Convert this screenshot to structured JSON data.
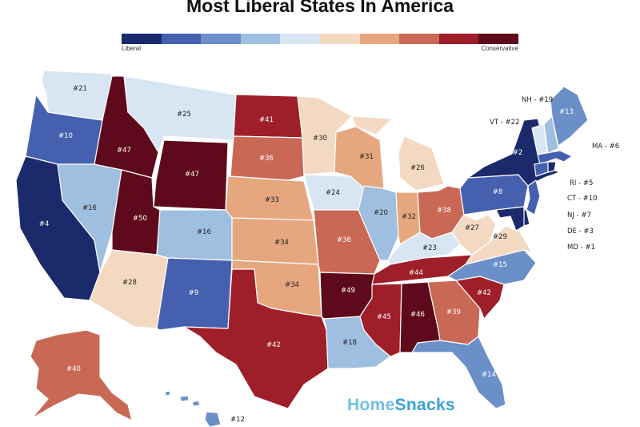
{
  "title": "Most Liberal States In America",
  "legend": {
    "left_label": "Liberal",
    "right_label": "Conservative",
    "colors": [
      "#1b2a6b",
      "#4660b0",
      "#6b8fc8",
      "#9fbfe0",
      "#d8e6f3",
      "#f4d9c2",
      "#e6a77f",
      "#c96955",
      "#9e1f2a",
      "#5e0a1c"
    ]
  },
  "states": [
    {
      "id": "WA",
      "rank": "#21"
    },
    {
      "id": "OR",
      "rank": "#10"
    },
    {
      "id": "CA",
      "rank": "#4"
    },
    {
      "id": "NV",
      "rank": "#16"
    },
    {
      "id": "ID",
      "rank": "#47"
    },
    {
      "id": "MT",
      "rank": "#25"
    },
    {
      "id": "WY",
      "rank": "#47"
    },
    {
      "id": "UT",
      "rank": "#50"
    },
    {
      "id": "AZ",
      "rank": "#28"
    },
    {
      "id": "CO",
      "rank": "#16"
    },
    {
      "id": "NM",
      "rank": "#9"
    },
    {
      "id": "ND",
      "rank": "#41"
    },
    {
      "id": "SD",
      "rank": "#36"
    },
    {
      "id": "NE",
      "rank": "#33"
    },
    {
      "id": "KS",
      "rank": "#34"
    },
    {
      "id": "OK",
      "rank": "#34"
    },
    {
      "id": "TX",
      "rank": "#42"
    },
    {
      "id": "MN",
      "rank": "#30"
    },
    {
      "id": "IA",
      "rank": "#24"
    },
    {
      "id": "MO",
      "rank": "#36"
    },
    {
      "id": "AR",
      "rank": "#49"
    },
    {
      "id": "LA",
      "rank": "#18"
    },
    {
      "id": "WI",
      "rank": "#31"
    },
    {
      "id": "IL",
      "rank": "#20"
    },
    {
      "id": "MI",
      "rank": "#26"
    },
    {
      "id": "IN",
      "rank": "#32"
    },
    {
      "id": "OH",
      "rank": "#38"
    },
    {
      "id": "KY",
      "rank": "#23"
    },
    {
      "id": "TN",
      "rank": "#44"
    },
    {
      "id": "MS",
      "rank": "#45"
    },
    {
      "id": "AL",
      "rank": "#46"
    },
    {
      "id": "GA",
      "rank": "#39"
    },
    {
      "id": "FL",
      "rank": "#14"
    },
    {
      "id": "SC",
      "rank": "#42"
    },
    {
      "id": "NC",
      "rank": "#15"
    },
    {
      "id": "VA",
      "rank": "#29"
    },
    {
      "id": "WV",
      "rank": "#27"
    },
    {
      "id": "PA",
      "rank": "#8"
    },
    {
      "id": "NY",
      "rank": "#2"
    },
    {
      "id": "ME",
      "rank": "#13"
    },
    {
      "id": "AK",
      "rank": "#40"
    },
    {
      "id": "HI",
      "rank": "#12"
    }
  ],
  "callouts": [
    {
      "id": "NH",
      "label": "NH - #19"
    },
    {
      "id": "VT",
      "label": "VT - #22"
    },
    {
      "id": "MA",
      "label": "MA - #6"
    },
    {
      "id": "RI",
      "label": "RI - #5"
    },
    {
      "id": "CT",
      "label": "CT - #10"
    },
    {
      "id": "NJ",
      "label": "NJ - #7"
    },
    {
      "id": "DE",
      "label": "DE - #3"
    },
    {
      "id": "MD",
      "label": "MD - #1"
    }
  ],
  "brand": {
    "home": "Home",
    "snacks": "Snacks"
  }
}
